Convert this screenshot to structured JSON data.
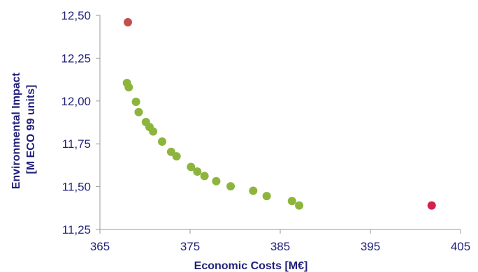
{
  "chart_data": {
    "type": "scatter",
    "title": "",
    "xlabel": "Economic Costs [M€]",
    "ylabel_lines": [
      "Environmental Impact",
      "[M ECO 99 units]"
    ],
    "xlim": [
      365,
      405
    ],
    "ylim": [
      11.25,
      12.5
    ],
    "x_ticks": [
      365,
      375,
      385,
      395,
      405
    ],
    "x_tick_labels": [
      "365",
      "375",
      "385",
      "395",
      "405"
    ],
    "y_ticks": [
      11.25,
      11.5,
      11.75,
      12.0,
      12.25,
      12.5
    ],
    "y_tick_labels": [
      "11,25",
      "11,50",
      "11,75",
      "12,00",
      "12,25",
      "12,50"
    ],
    "grid": false,
    "legend": "none",
    "series": [
      {
        "color": "#8db53d",
        "points": [
          [
            368.0,
            12.105
          ],
          [
            368.2,
            12.08
          ],
          [
            369.0,
            11.995
          ],
          [
            369.3,
            11.935
          ],
          [
            370.1,
            11.877
          ],
          [
            370.5,
            11.848
          ],
          [
            370.9,
            11.822
          ],
          [
            371.9,
            11.763
          ],
          [
            372.9,
            11.703
          ],
          [
            373.5,
            11.677
          ],
          [
            375.1,
            11.615
          ],
          [
            375.8,
            11.588
          ],
          [
            376.6,
            11.562
          ],
          [
            377.9,
            11.532
          ],
          [
            379.5,
            11.502
          ],
          [
            382.0,
            11.476
          ],
          [
            383.5,
            11.445
          ],
          [
            386.3,
            11.416
          ],
          [
            387.1,
            11.39
          ]
        ]
      },
      {
        "color": "#c0504d",
        "points": [
          [
            368.1,
            12.46
          ]
        ]
      },
      {
        "color": "#d4204a",
        "points": [
          [
            401.8,
            11.39
          ]
        ]
      }
    ]
  }
}
